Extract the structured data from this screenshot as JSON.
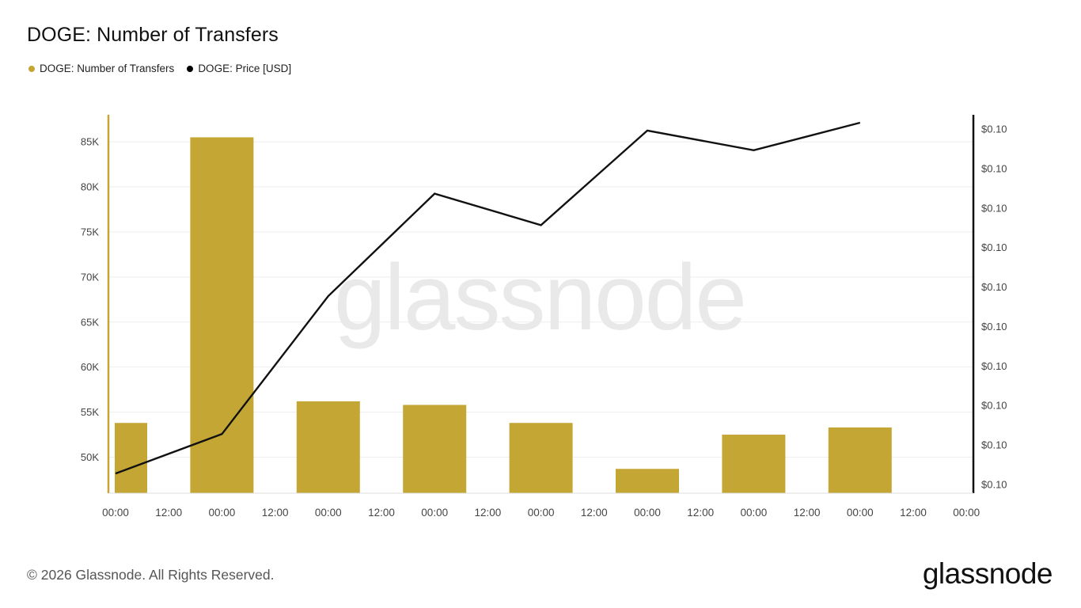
{
  "title": "DOGE: Number of Transfers",
  "legend": [
    {
      "label": "DOGE: Number of Transfers",
      "color": "#c4a635"
    },
    {
      "label": "DOGE: Price [USD]",
      "color": "#000000"
    }
  ],
  "watermark": "glassnode",
  "footer": "© 2026 Glassnode. All Rights Reserved.",
  "brand": "glassnode",
  "chart_data": {
    "type": "bar",
    "x_ticks": [
      "00:00",
      "12:00",
      "00:00",
      "12:00",
      "00:00",
      "12:00",
      "00:00",
      "12:00",
      "00:00",
      "12:00",
      "00:00",
      "12:00",
      "00:00",
      "12:00",
      "00:00",
      "12:00",
      "00:00"
    ],
    "left_axis": {
      "ticks": [
        "50K",
        "55K",
        "60K",
        "65K",
        "70K",
        "75K",
        "80K",
        "85K"
      ],
      "tick_values": [
        50000,
        55000,
        60000,
        65000,
        70000,
        75000,
        80000,
        85000
      ],
      "range": [
        46000,
        88000
      ]
    },
    "right_axis": {
      "ticks": [
        "$0.10",
        "$0.10",
        "$0.10",
        "$0.10",
        "$0.10",
        "$0.10",
        "$0.10",
        "$0.10",
        "$0.10",
        "$0.10"
      ]
    },
    "series": [
      {
        "name": "DOGE: Number of Transfers",
        "type": "bar",
        "color": "#c4a635",
        "tick_index": [
          0,
          2,
          4,
          6,
          8,
          10,
          12,
          14
        ],
        "values": [
          53800,
          85500,
          56200,
          55800,
          53800,
          48700,
          52500,
          53300
        ]
      },
      {
        "name": "DOGE: Price [USD]",
        "type": "line",
        "color": "#111111",
        "tick_index": [
          0,
          2,
          4,
          6,
          8,
          10,
          12,
          14
        ],
        "values": [
          0.0959,
          0.0969,
          0.1004,
          0.103,
          0.1022,
          0.1046,
          0.1041,
          0.1048
        ],
        "range": [
          0.0954,
          0.105
        ]
      }
    ]
  }
}
